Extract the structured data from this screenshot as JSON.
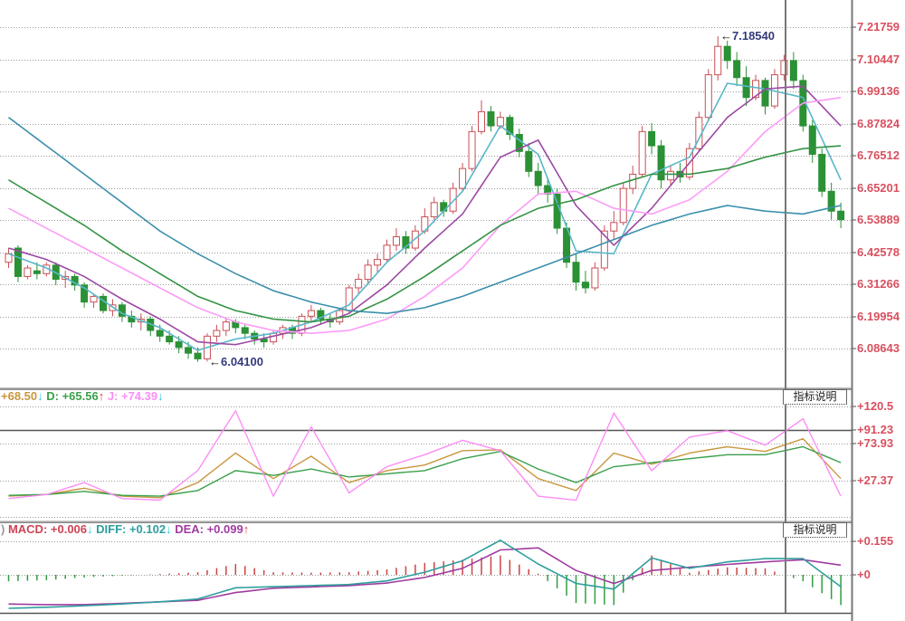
{
  "window": {
    "background": "#ffffff",
    "plot_right_edge": 941,
    "divider_x": 868
  },
  "colors": {
    "grid": "#9a9a9a",
    "frame": "#777777",
    "separator_light": "#bbbbbb",
    "separator_dark": "#777777",
    "axis_text": "#d94f5e",
    "annotation_text": "#333a7a",
    "annotation_arrow": "#111111",
    "candle_up": "#c94f55",
    "candle_down": "#2b9135",
    "arrow_up": "#e83b3b",
    "arrow_down": "#2fc3e8"
  },
  "main_pane": {
    "axis_labels": [
      "7.21759",
      "7.10447",
      "6.99136",
      "6.87824",
      "6.76512",
      "6.65201",
      "6.53889",
      "6.42578",
      "6.31266",
      "6.19954",
      "6.08643"
    ],
    "high_annotation": {
      "arrow": "←",
      "value": "7.18540"
    },
    "low_annotation": {
      "arrow": "←",
      "value": "6.04100"
    }
  },
  "kdj_pane": {
    "button_label": "指标说明",
    "value_segments": [
      {
        "text": "+68.50",
        "color": "#c9973f"
      },
      {
        "text": "↓",
        "color": "#2fc3e8"
      },
      {
        "text": " D: +65.56",
        "color": "#3aa04b"
      },
      {
        "text": "↑",
        "color": "#e83b3b"
      },
      {
        "text": " J: +74.39",
        "color": "#fc8df5"
      },
      {
        "text": "↓",
        "color": "#2fc3e8"
      }
    ],
    "axis_labels": [
      {
        "text": "+120.5",
        "value": 120.5
      },
      {
        "text": "+91.23",
        "value": 91.23
      },
      {
        "text": "+73.93",
        "value": 73.93
      },
      {
        "text": "+27.37",
        "value": 27.37
      }
    ]
  },
  "macd_pane": {
    "button_label": "指标说明",
    "value_segments": [
      {
        "text": ") ",
        "color": "#999999"
      },
      {
        "text": "MACD: +0.006",
        "color": "#cc4455"
      },
      {
        "text": "↓",
        "color": "#2fc3e8"
      },
      {
        "text": " DIFF: +0.102",
        "color": "#2f9e9e"
      },
      {
        "text": "↓",
        "color": "#2fc3e8"
      },
      {
        "text": " DEA: +0.099",
        "color": "#a03ca0"
      },
      {
        "text": "↑",
        "color": "#e83b3b"
      }
    ],
    "axis_labels": [
      {
        "text": "+0.155",
        "value": 0.155
      },
      {
        "text": "+0",
        "value": 0
      }
    ]
  },
  "chart_data": [
    {
      "type": "candlestick",
      "title": "price with moving averages",
      "ylim": [
        6.0,
        7.26
      ],
      "y_axis_ticks": [
        7.21759,
        7.10447,
        6.99136,
        6.87824,
        6.76512,
        6.65201,
        6.53889,
        6.42578,
        6.31266,
        6.19954,
        6.08643
      ],
      "up_color": "#c94f55",
      "down_color": "#2b9135",
      "annotations": [
        {
          "text": "7.18540",
          "at_index": 75,
          "position": "high"
        },
        {
          "text": "6.04100",
          "at_index": 21,
          "position": "low"
        }
      ],
      "ohlc": [
        [
          6.39,
          6.44,
          6.37,
          6.42
        ],
        [
          6.44,
          6.45,
          6.32,
          6.34
        ],
        [
          6.34,
          6.38,
          6.33,
          6.37
        ],
        [
          6.36,
          6.39,
          6.33,
          6.35
        ],
        [
          6.35,
          6.39,
          6.34,
          6.38
        ],
        [
          6.38,
          6.39,
          6.31,
          6.33
        ],
        [
          6.33,
          6.36,
          6.3,
          6.34
        ],
        [
          6.34,
          6.35,
          6.29,
          6.31
        ],
        [
          6.31,
          6.32,
          6.23,
          6.25
        ],
        [
          6.25,
          6.28,
          6.23,
          6.27
        ],
        [
          6.27,
          6.28,
          6.21,
          6.22
        ],
        [
          6.22,
          6.26,
          6.2,
          6.24
        ],
        [
          6.24,
          6.25,
          6.18,
          6.2
        ],
        [
          6.2,
          6.22,
          6.16,
          6.18
        ],
        [
          6.18,
          6.21,
          6.15,
          6.19
        ],
        [
          6.19,
          6.2,
          6.13,
          6.15
        ],
        [
          6.15,
          6.17,
          6.11,
          6.13
        ],
        [
          6.13,
          6.15,
          6.1,
          6.11
        ],
        [
          6.11,
          6.13,
          6.07,
          6.09
        ],
        [
          6.09,
          6.11,
          6.05,
          6.07
        ],
        [
          6.07,
          6.09,
          6.04,
          6.05
        ],
        [
          6.05,
          6.14,
          6.041,
          6.13
        ],
        [
          6.13,
          6.17,
          6.11,
          6.15
        ],
        [
          6.15,
          6.19,
          6.13,
          6.18
        ],
        [
          6.18,
          6.19,
          6.14,
          6.16
        ],
        [
          6.16,
          6.17,
          6.12,
          6.14
        ],
        [
          6.14,
          6.15,
          6.1,
          6.12
        ],
        [
          6.12,
          6.14,
          6.09,
          6.11
        ],
        [
          6.11,
          6.15,
          6.1,
          6.14
        ],
        [
          6.14,
          6.17,
          6.12,
          6.16
        ],
        [
          6.16,
          6.17,
          6.12,
          6.14
        ],
        [
          6.14,
          6.21,
          6.13,
          6.2
        ],
        [
          6.2,
          6.24,
          6.18,
          6.22
        ],
        [
          6.22,
          6.23,
          6.17,
          6.19
        ],
        [
          6.19,
          6.21,
          6.16,
          6.18
        ],
        [
          6.18,
          6.23,
          6.17,
          6.22
        ],
        [
          6.22,
          6.31,
          6.21,
          6.3
        ],
        [
          6.3,
          6.35,
          6.28,
          6.33
        ],
        [
          6.33,
          6.4,
          6.31,
          6.38
        ],
        [
          6.38,
          6.42,
          6.35,
          6.4
        ],
        [
          6.4,
          6.47,
          6.39,
          6.45
        ],
        [
          6.45,
          6.51,
          6.43,
          6.48
        ],
        [
          6.48,
          6.5,
          6.42,
          6.44
        ],
        [
          6.44,
          6.52,
          6.43,
          6.5
        ],
        [
          6.5,
          6.58,
          6.49,
          6.55
        ],
        [
          6.55,
          6.62,
          6.53,
          6.6
        ],
        [
          6.6,
          6.61,
          6.55,
          6.57
        ],
        [
          6.57,
          6.67,
          6.56,
          6.65
        ],
        [
          6.65,
          6.74,
          6.64,
          6.72
        ],
        [
          6.72,
          6.87,
          6.71,
          6.85
        ],
        [
          6.85,
          6.96,
          6.84,
          6.92
        ],
        [
          6.92,
          6.94,
          6.85,
          6.87
        ],
        [
          6.87,
          6.92,
          6.86,
          6.9
        ],
        [
          6.9,
          6.91,
          6.82,
          6.84
        ],
        [
          6.84,
          6.86,
          6.76,
          6.78
        ],
        [
          6.78,
          6.81,
          6.69,
          6.71
        ],
        [
          6.71,
          6.74,
          6.63,
          6.66
        ],
        [
          6.66,
          6.69,
          6.6,
          6.63
        ],
        [
          6.63,
          6.65,
          6.49,
          6.51
        ],
        [
          6.51,
          6.53,
          6.37,
          6.39
        ],
        [
          6.39,
          6.42,
          6.29,
          6.32
        ],
        [
          6.32,
          6.36,
          6.28,
          6.3
        ],
        [
          6.3,
          6.39,
          6.29,
          6.37
        ],
        [
          6.37,
          6.52,
          6.36,
          6.5
        ],
        [
          6.5,
          6.57,
          6.47,
          6.53
        ],
        [
          6.53,
          6.67,
          6.52,
          6.65
        ],
        [
          6.65,
          6.73,
          6.63,
          6.7
        ],
        [
          6.7,
          6.87,
          6.69,
          6.85
        ],
        [
          6.85,
          6.88,
          6.77,
          6.8
        ],
        [
          6.8,
          6.82,
          6.65,
          6.68
        ],
        [
          6.68,
          6.73,
          6.66,
          6.71
        ],
        [
          6.71,
          6.74,
          6.67,
          6.69
        ],
        [
          6.69,
          6.81,
          6.68,
          6.79
        ],
        [
          6.79,
          6.92,
          6.78,
          6.9
        ],
        [
          6.9,
          7.07,
          6.89,
          7.05
        ],
        [
          7.05,
          7.1854,
          7.03,
          7.15
        ],
        [
          7.15,
          7.17,
          7.07,
          7.1
        ],
        [
          7.1,
          7.13,
          7.01,
          7.04
        ],
        [
          7.04,
          7.08,
          6.94,
          6.97
        ],
        [
          6.97,
          7.05,
          6.96,
          7.03
        ],
        [
          7.03,
          7.04,
          6.91,
          6.94
        ],
        [
          6.94,
          7.07,
          6.93,
          7.05
        ],
        [
          7.05,
          7.12,
          7.03,
          7.1
        ],
        [
          7.1,
          7.13,
          7.0,
          7.03
        ],
        [
          7.03,
          7.05,
          6.85,
          6.87
        ],
        [
          6.87,
          6.89,
          6.74,
          6.77
        ],
        [
          6.77,
          6.79,
          6.62,
          6.64
        ],
        [
          6.64,
          6.67,
          6.54,
          6.57
        ],
        [
          6.57,
          6.6,
          6.51,
          6.54
        ]
      ],
      "overlays": [
        {
          "name": "ma-fast-cyan",
          "color": "#58b7c9",
          "step": 4,
          "values": [
            6.42,
            6.37,
            6.3,
            6.21,
            6.16,
            6.08,
            6.12,
            6.14,
            6.18,
            6.24,
            6.39,
            6.5,
            6.64,
            6.87,
            6.77,
            6.43,
            6.42,
            6.7,
            6.76,
            7.02,
            7.0,
            6.97,
            6.68
          ]
        },
        {
          "name": "ma-mid-purple",
          "color": "#9c49a3",
          "step": 4,
          "values": [
            6.44,
            6.4,
            6.34,
            6.26,
            6.19,
            6.11,
            6.1,
            6.13,
            6.16,
            6.21,
            6.31,
            6.44,
            6.56,
            6.76,
            6.82,
            6.59,
            6.45,
            6.58,
            6.74,
            6.9,
            7.0,
            7.01,
            6.87
          ]
        },
        {
          "name": "ma-20-pink",
          "color": "#fc9cf8",
          "step": 4,
          "values": [
            6.58,
            6.51,
            6.44,
            6.37,
            6.3,
            6.23,
            6.18,
            6.15,
            6.14,
            6.15,
            6.19,
            6.27,
            6.37,
            6.52,
            6.63,
            6.64,
            6.58,
            6.56,
            6.61,
            6.71,
            6.85,
            6.95,
            6.97
          ]
        },
        {
          "name": "ma-slow-green",
          "color": "#339344",
          "step": 4,
          "values": [
            6.68,
            6.6,
            6.52,
            6.43,
            6.35,
            6.27,
            6.22,
            6.19,
            6.18,
            6.2,
            6.26,
            6.34,
            6.43,
            6.52,
            6.58,
            6.61,
            6.66,
            6.7,
            6.7,
            6.72,
            6.76,
            6.79,
            6.8
          ]
        },
        {
          "name": "ma-slowest-teal",
          "color": "#3b90ab",
          "step": 4,
          "values": [
            6.9,
            6.8,
            6.7,
            6.6,
            6.5,
            6.42,
            6.35,
            6.29,
            6.25,
            6.22,
            6.21,
            6.23,
            6.27,
            6.32,
            6.37,
            6.42,
            6.47,
            6.52,
            6.56,
            6.59,
            6.57,
            6.56,
            6.59
          ]
        }
      ]
    },
    {
      "type": "line",
      "title": "KDJ",
      "ylim": [
        -22,
        122
      ],
      "reference_lines": {
        "solid": 91.23,
        "dotted": [
          120.5,
          73.93,
          27.37,
          -18
        ]
      },
      "series": [
        {
          "name": "K",
          "color": "#c9973f",
          "step": 4,
          "values": [
            8,
            10,
            18,
            8,
            6,
            25,
            62,
            30,
            58,
            25,
            40,
            47,
            65,
            66,
            30,
            15,
            62,
            48,
            62,
            70,
            64,
            80,
            30
          ]
        },
        {
          "name": "D",
          "color": "#3aa04b",
          "step": 4,
          "values": [
            9,
            10,
            14,
            9,
            8,
            15,
            40,
            34,
            42,
            32,
            36,
            40,
            55,
            64,
            42,
            25,
            45,
            50,
            55,
            60,
            60,
            70,
            50
          ]
        },
        {
          "name": "J",
          "color": "#fc8df5",
          "step": 4,
          "values": [
            5,
            10,
            25,
            5,
            3,
            40,
            115,
            8,
            95,
            12,
            45,
            60,
            78,
            65,
            8,
            3,
            112,
            40,
            82,
            90,
            72,
            105,
            8
          ]
        }
      ]
    },
    {
      "type": "bar+line",
      "title": "MACD",
      "ylim": [
        -0.176,
        0.172
      ],
      "reference_lines": {
        "dotted": [
          0.155,
          0
        ]
      },
      "histogram": {
        "name": "MACD",
        "up_color": "#cc4444",
        "down_color": "#2f9e3f",
        "step": 4,
        "values": [
          -0.03,
          -0.025,
          -0.012,
          -0.004,
          0.004,
          0.012,
          0.05,
          0.012,
          0.01,
          0.012,
          0.025,
          0.055,
          0.07,
          0.09,
          0.005,
          -0.13,
          -0.14,
          0.09,
          0.01,
          0.035,
          0.03,
          -0.03,
          -0.14
        ]
      },
      "series": [
        {
          "name": "DIFF",
          "color": "#2f9e9e",
          "step": 4,
          "values": [
            -0.155,
            -0.15,
            -0.143,
            -0.135,
            -0.125,
            -0.112,
            -0.06,
            -0.055,
            -0.05,
            -0.045,
            -0.028,
            0.012,
            0.065,
            0.16,
            0.05,
            -0.04,
            -0.066,
            0.078,
            0.03,
            0.06,
            0.075,
            0.075,
            -0.055
          ]
        },
        {
          "name": "DEA",
          "color": "#a03ca0",
          "step": 4,
          "values": [
            -0.135,
            -0.138,
            -0.138,
            -0.132,
            -0.125,
            -0.118,
            -0.082,
            -0.062,
            -0.056,
            -0.05,
            -0.038,
            -0.012,
            0.03,
            0.115,
            0.125,
            0.02,
            -0.04,
            0.02,
            0.035,
            0.048,
            0.06,
            0.07,
            0.045
          ]
        }
      ]
    }
  ]
}
